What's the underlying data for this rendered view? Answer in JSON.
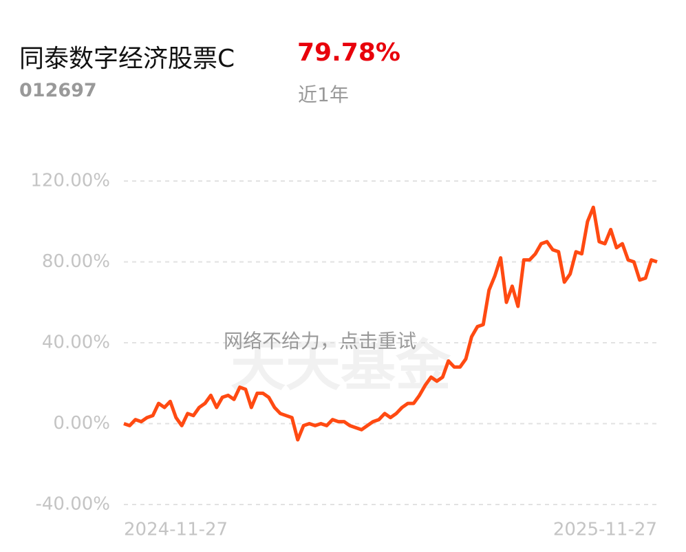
{
  "header": {
    "title": "同泰数字经济股票C",
    "return": "79.78%",
    "code": "012697",
    "period": "近1年"
  },
  "overlay": {
    "message": "网络不给力，点击重试",
    "watermark": "天天基金"
  },
  "chart_data": {
    "type": "line",
    "categories": [
      "2024-11-27",
      null,
      null,
      null,
      null,
      null,
      null,
      null,
      null,
      null,
      null,
      null,
      null,
      null,
      null,
      null,
      null,
      null,
      null,
      null,
      null,
      null,
      null,
      null,
      null,
      null,
      null,
      null,
      null,
      null,
      null,
      null,
      null,
      null,
      null,
      null,
      null,
      null,
      null,
      null,
      null,
      null,
      null,
      null,
      null,
      null,
      null,
      null,
      null,
      null,
      null,
      null,
      null,
      null,
      null,
      null,
      null,
      null,
      null,
      null,
      null,
      null,
      null,
      null,
      null,
      null,
      null,
      null,
      null,
      null,
      null,
      null,
      null,
      null,
      null,
      null,
      null,
      null,
      null,
      null,
      null,
      null,
      null,
      null,
      null,
      null,
      null,
      null,
      null,
      null,
      null,
      null,
      "2025-11-27"
    ],
    "series": [
      {
        "color": "#ff4a12",
        "values": [
          0,
          -1,
          2,
          1,
          3,
          4,
          10,
          8,
          11,
          3,
          -1,
          5,
          4,
          8,
          10,
          14,
          8,
          13,
          14,
          12,
          18,
          17,
          8,
          15,
          15,
          13,
          8,
          5,
          4,
          3,
          -8,
          -1,
          0,
          -1,
          0,
          -1,
          2,
          1,
          1,
          -1,
          -2,
          -3,
          -1,
          1,
          2,
          5,
          3,
          5,
          8,
          10,
          10,
          14,
          19,
          23,
          21,
          23,
          31,
          28,
          28,
          32,
          43,
          48,
          49,
          66,
          73,
          82,
          60,
          68,
          58,
          81,
          81,
          84,
          89,
          90,
          86,
          85,
          70,
          74,
          85,
          84,
          100,
          107,
          90,
          89,
          96,
          87,
          89,
          81,
          80,
          71,
          72,
          81,
          80
        ]
      }
    ],
    "ylim": [
      -40,
      120
    ],
    "yticks": [
      {
        "value": -40,
        "label": "-40.00%"
      },
      {
        "value": 0,
        "label": "0.00%"
      },
      {
        "value": 40,
        "label": "40.00%"
      },
      {
        "value": 80,
        "label": "80.00%"
      },
      {
        "value": 120,
        "label": "120.00%"
      }
    ],
    "grid": true
  }
}
